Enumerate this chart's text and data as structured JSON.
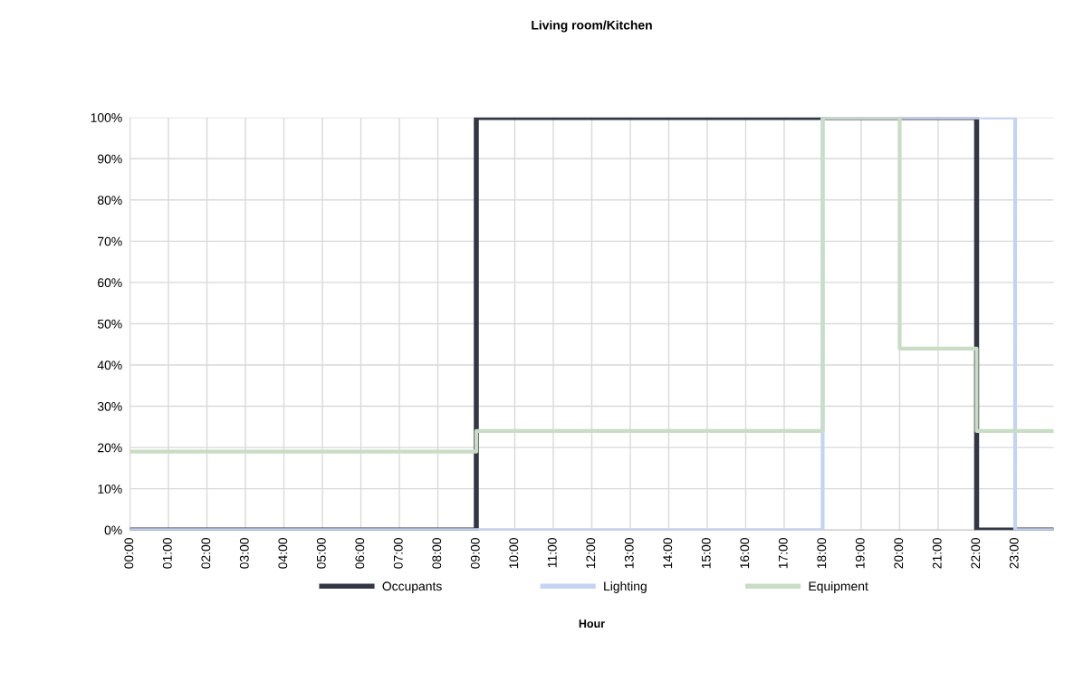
{
  "chart_data": {
    "type": "step",
    "title": "Living room/Kitchen",
    "xlabel": "Hour",
    "xlim": [
      0,
      24
    ],
    "xticks": [
      {
        "value": 0,
        "label": "00:00"
      },
      {
        "value": 1,
        "label": "01:00"
      },
      {
        "value": 2,
        "label": "02:00"
      },
      {
        "value": 3,
        "label": "03:00"
      },
      {
        "value": 4,
        "label": "04:00"
      },
      {
        "value": 5,
        "label": "05:00"
      },
      {
        "value": 6,
        "label": "06:00"
      },
      {
        "value": 7,
        "label": "07:00"
      },
      {
        "value": 8,
        "label": "08:00"
      },
      {
        "value": 9,
        "label": "09:00"
      },
      {
        "value": 10,
        "label": "10:00"
      },
      {
        "value": 11,
        "label": "11:00"
      },
      {
        "value": 12,
        "label": "12:00"
      },
      {
        "value": 13,
        "label": "13:00"
      },
      {
        "value": 14,
        "label": "14:00"
      },
      {
        "value": 15,
        "label": "15:00"
      },
      {
        "value": 16,
        "label": "16:00"
      },
      {
        "value": 17,
        "label": "17:00"
      },
      {
        "value": 18,
        "label": "18:00"
      },
      {
        "value": 19,
        "label": "19:00"
      },
      {
        "value": 20,
        "label": "20:00"
      },
      {
        "value": 21,
        "label": "21:00"
      },
      {
        "value": 22,
        "label": "22:00"
      },
      {
        "value": 23,
        "label": "23:00"
      }
    ],
    "ylim": [
      0,
      100
    ],
    "yticks": [
      {
        "value": 0,
        "label": "0%"
      },
      {
        "value": 10,
        "label": "10%"
      },
      {
        "value": 20,
        "label": "20%"
      },
      {
        "value": 30,
        "label": "30%"
      },
      {
        "value": 40,
        "label": "40%"
      },
      {
        "value": 50,
        "label": "50%"
      },
      {
        "value": 60,
        "label": "60%"
      },
      {
        "value": 70,
        "label": "70%"
      },
      {
        "value": 80,
        "label": "80%"
      },
      {
        "value": 90,
        "label": "90%"
      },
      {
        "value": 100,
        "label": "100%"
      }
    ],
    "grid": true,
    "legend": "bottom",
    "line_style": "solid",
    "series": [
      {
        "name": "Occupants",
        "color": "#333644",
        "x": [
          0,
          9,
          22,
          24
        ],
        "values": [
          0,
          100,
          0,
          0
        ]
      },
      {
        "name": "Lighting",
        "color": "#c5d3f0",
        "x": [
          0,
          18,
          23,
          24
        ],
        "values": [
          0,
          100,
          0,
          0
        ]
      },
      {
        "name": "Equipment",
        "color": "#c9dcc5",
        "x": [
          0,
          9,
          18,
          20,
          22,
          24
        ],
        "values": [
          19,
          24,
          100,
          44,
          24,
          24
        ]
      }
    ]
  }
}
